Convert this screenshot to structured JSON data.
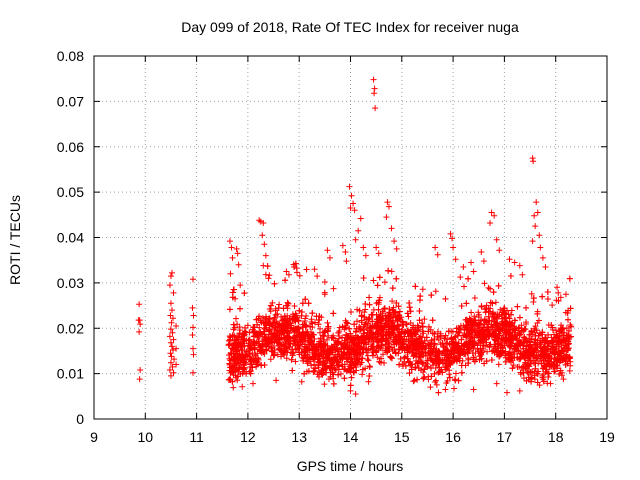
{
  "chart_data": {
    "type": "scatter",
    "title": "Day 099 of 2018, Rate Of TEC Index for receiver nuga",
    "xlabel": "GPS time / hours",
    "ylabel": "ROTI / TECUs",
    "xlim": [
      9,
      19
    ],
    "ylim": [
      0,
      0.08
    ],
    "grid": true,
    "marker": "+",
    "color": "#ff0000",
    "x_ticks": [
      "9",
      "10",
      "11",
      "12",
      "13",
      "14",
      "15",
      "16",
      "17",
      "18",
      "19"
    ],
    "y_ticks": [
      "0",
      "0.01",
      "0.02",
      "0.03",
      "0.04",
      "0.05",
      "0.06",
      "0.07",
      "0.08"
    ],
    "series": [
      {
        "name": "ROTI",
        "points": [
          [
            9.88,
            0.0253
          ],
          [
            9.89,
            0.0218
          ],
          [
            9.9,
            0.0209
          ],
          [
            9.88,
            0.0192
          ],
          [
            9.9,
            0.0108
          ],
          [
            9.89,
            0.0088
          ],
          [
            9.87,
            0.0218
          ],
          [
            10.48,
            0.0295
          ],
          [
            10.5,
            0.0315
          ],
          [
            10.52,
            0.0322
          ],
          [
            10.55,
            0.0278
          ],
          [
            10.5,
            0.0255
          ],
          [
            10.52,
            0.024
          ],
          [
            10.49,
            0.0228
          ],
          [
            10.54,
            0.0222
          ],
          [
            10.51,
            0.0212
          ],
          [
            10.5,
            0.0198
          ],
          [
            10.53,
            0.019
          ],
          [
            10.48,
            0.0182
          ],
          [
            10.55,
            0.0175
          ],
          [
            10.5,
            0.0168
          ],
          [
            10.52,
            0.016
          ],
          [
            10.54,
            0.0152
          ],
          [
            10.49,
            0.0145
          ],
          [
            10.51,
            0.0138
          ],
          [
            10.56,
            0.0132
          ],
          [
            10.5,
            0.0124
          ],
          [
            10.53,
            0.0115
          ],
          [
            10.48,
            0.0108
          ],
          [
            10.55,
            0.0102
          ],
          [
            10.5,
            0.0095
          ],
          [
            10.6,
            0.0155
          ],
          [
            10.6,
            0.0205
          ],
          [
            10.6,
            0.012
          ],
          [
            10.93,
            0.0308
          ],
          [
            10.92,
            0.0245
          ],
          [
            10.94,
            0.0228
          ],
          [
            10.93,
            0.0202
          ],
          [
            10.92,
            0.0185
          ],
          [
            10.93,
            0.0155
          ],
          [
            10.94,
            0.0142
          ],
          [
            10.93,
            0.0102
          ],
          [
            11.65,
            0.0392
          ],
          [
            11.68,
            0.0378
          ],
          [
            11.7,
            0.0355
          ],
          [
            11.66,
            0.032
          ],
          [
            11.72,
            0.0285
          ],
          [
            11.75,
            0.0265
          ],
          [
            11.78,
            0.0375
          ],
          [
            11.8,
            0.0365
          ],
          [
            11.82,
            0.034
          ],
          [
            11.85,
            0.0295
          ],
          [
            12.22,
            0.0438
          ],
          [
            12.25,
            0.0435
          ],
          [
            12.3,
            0.0432
          ],
          [
            12.28,
            0.0405
          ],
          [
            12.32,
            0.0385
          ],
          [
            12.35,
            0.036
          ],
          [
            12.3,
            0.0338
          ],
          [
            12.4,
            0.031
          ],
          [
            12.75,
            0.0325
          ],
          [
            12.8,
            0.0318
          ],
          [
            13.3,
            0.033
          ],
          [
            13.35,
            0.0315
          ],
          [
            13.5,
            0.0302
          ],
          [
            13.55,
            0.0372
          ],
          [
            13.6,
            0.0355
          ],
          [
            13.85,
            0.0382
          ],
          [
            13.9,
            0.0368
          ],
          [
            13.92,
            0.0348
          ],
          [
            13.98,
            0.0512
          ],
          [
            14.02,
            0.0492
          ],
          [
            14.05,
            0.0475
          ],
          [
            14.0,
            0.0465
          ],
          [
            14.08,
            0.046
          ],
          [
            14.2,
            0.0442
          ],
          [
            14.15,
            0.0415
          ],
          [
            14.1,
            0.0395
          ],
          [
            14.25,
            0.0378
          ],
          [
            14.3,
            0.036
          ],
          [
            14.45,
            0.0748
          ],
          [
            14.47,
            0.0728
          ],
          [
            14.46,
            0.0718
          ],
          [
            14.48,
            0.0685
          ],
          [
            14.5,
            0.0378
          ],
          [
            14.55,
            0.0365
          ],
          [
            14.72,
            0.0478
          ],
          [
            14.75,
            0.0468
          ],
          [
            14.7,
            0.0445
          ],
          [
            14.8,
            0.042
          ],
          [
            14.85,
            0.0392
          ],
          [
            14.9,
            0.0375
          ],
          [
            15.65,
            0.0378
          ],
          [
            15.7,
            0.0362
          ],
          [
            15.95,
            0.0408
          ],
          [
            15.98,
            0.0398
          ],
          [
            16.0,
            0.0378
          ],
          [
            16.05,
            0.0352
          ],
          [
            16.2,
            0.0335
          ],
          [
            16.35,
            0.0345
          ],
          [
            16.4,
            0.0325
          ],
          [
            16.55,
            0.0368
          ],
          [
            16.6,
            0.0348
          ],
          [
            16.75,
            0.0455
          ],
          [
            16.8,
            0.0448
          ],
          [
            16.72,
            0.0432
          ],
          [
            16.85,
            0.0395
          ],
          [
            16.9,
            0.0372
          ],
          [
            17.1,
            0.0352
          ],
          [
            17.2,
            0.0345
          ],
          [
            17.3,
            0.0338
          ],
          [
            17.35,
            0.0318
          ],
          [
            17.55,
            0.0575
          ],
          [
            17.56,
            0.0568
          ],
          [
            17.62,
            0.0478
          ],
          [
            17.65,
            0.0455
          ],
          [
            17.58,
            0.0448
          ],
          [
            17.6,
            0.0425
          ],
          [
            17.68,
            0.0405
          ],
          [
            17.55,
            0.0392
          ],
          [
            17.7,
            0.0378
          ],
          [
            17.75,
            0.0355
          ],
          [
            17.8,
            0.0335
          ],
          [
            18.05,
            0.0278
          ],
          [
            18.1,
            0.0268
          ],
          [
            18.2,
            0.0275
          ],
          [
            13.58,
            0.0088
          ],
          [
            14.0,
            0.0062
          ],
          [
            14.35,
            0.0082
          ],
          [
            14.1,
            0.0055
          ],
          [
            15.25,
            0.0085
          ],
          [
            15.85,
            0.0065
          ],
          [
            16.4,
            0.0065
          ],
          [
            16.85,
            0.0078
          ],
          [
            17.05,
            0.0058
          ],
          [
            17.3,
            0.0062
          ],
          [
            17.9,
            0.0078
          ],
          [
            18.15,
            0.0088
          ],
          [
            11.7,
            0.0082
          ],
          [
            12.1,
            0.0078
          ],
          [
            12.55,
            0.0085
          ],
          [
            13.05,
            0.0082
          ]
        ],
        "dense_band": {
          "x_range": [
            11.62,
            18.3
          ],
          "y_center_range": [
            0.013,
            0.022
          ],
          "y_spread_range": [
            0.007,
            0.03
          ],
          "count": 4200
        }
      }
    ]
  }
}
